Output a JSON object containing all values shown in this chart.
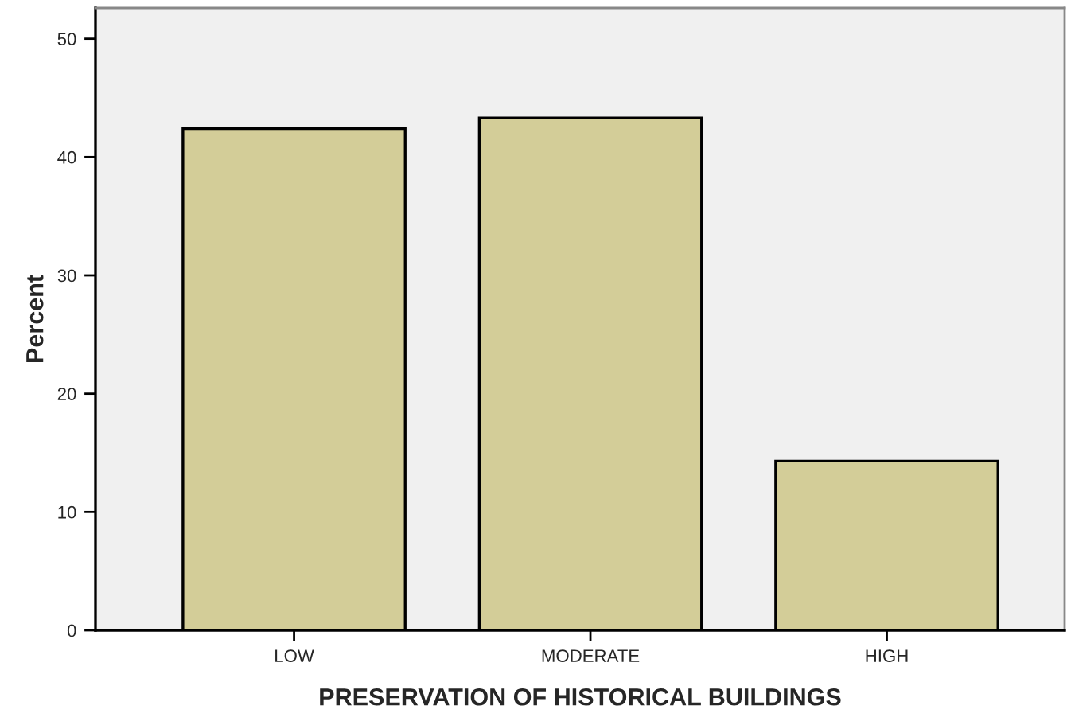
{
  "chart_data": {
    "type": "bar",
    "xlabel": "PRESERVATION OF HISTORICAL BUILDINGS",
    "ylabel": "Percent",
    "categories": [
      "LOW",
      "MODERATE",
      "HIGH"
    ],
    "values": [
      42.4,
      43.3,
      14.3
    ],
    "color": "#d3cd98",
    "ylim": [
      0,
      52.6
    ],
    "yticks": [
      0,
      10,
      20,
      30,
      40,
      50
    ],
    "grid": false,
    "legend": false
  }
}
